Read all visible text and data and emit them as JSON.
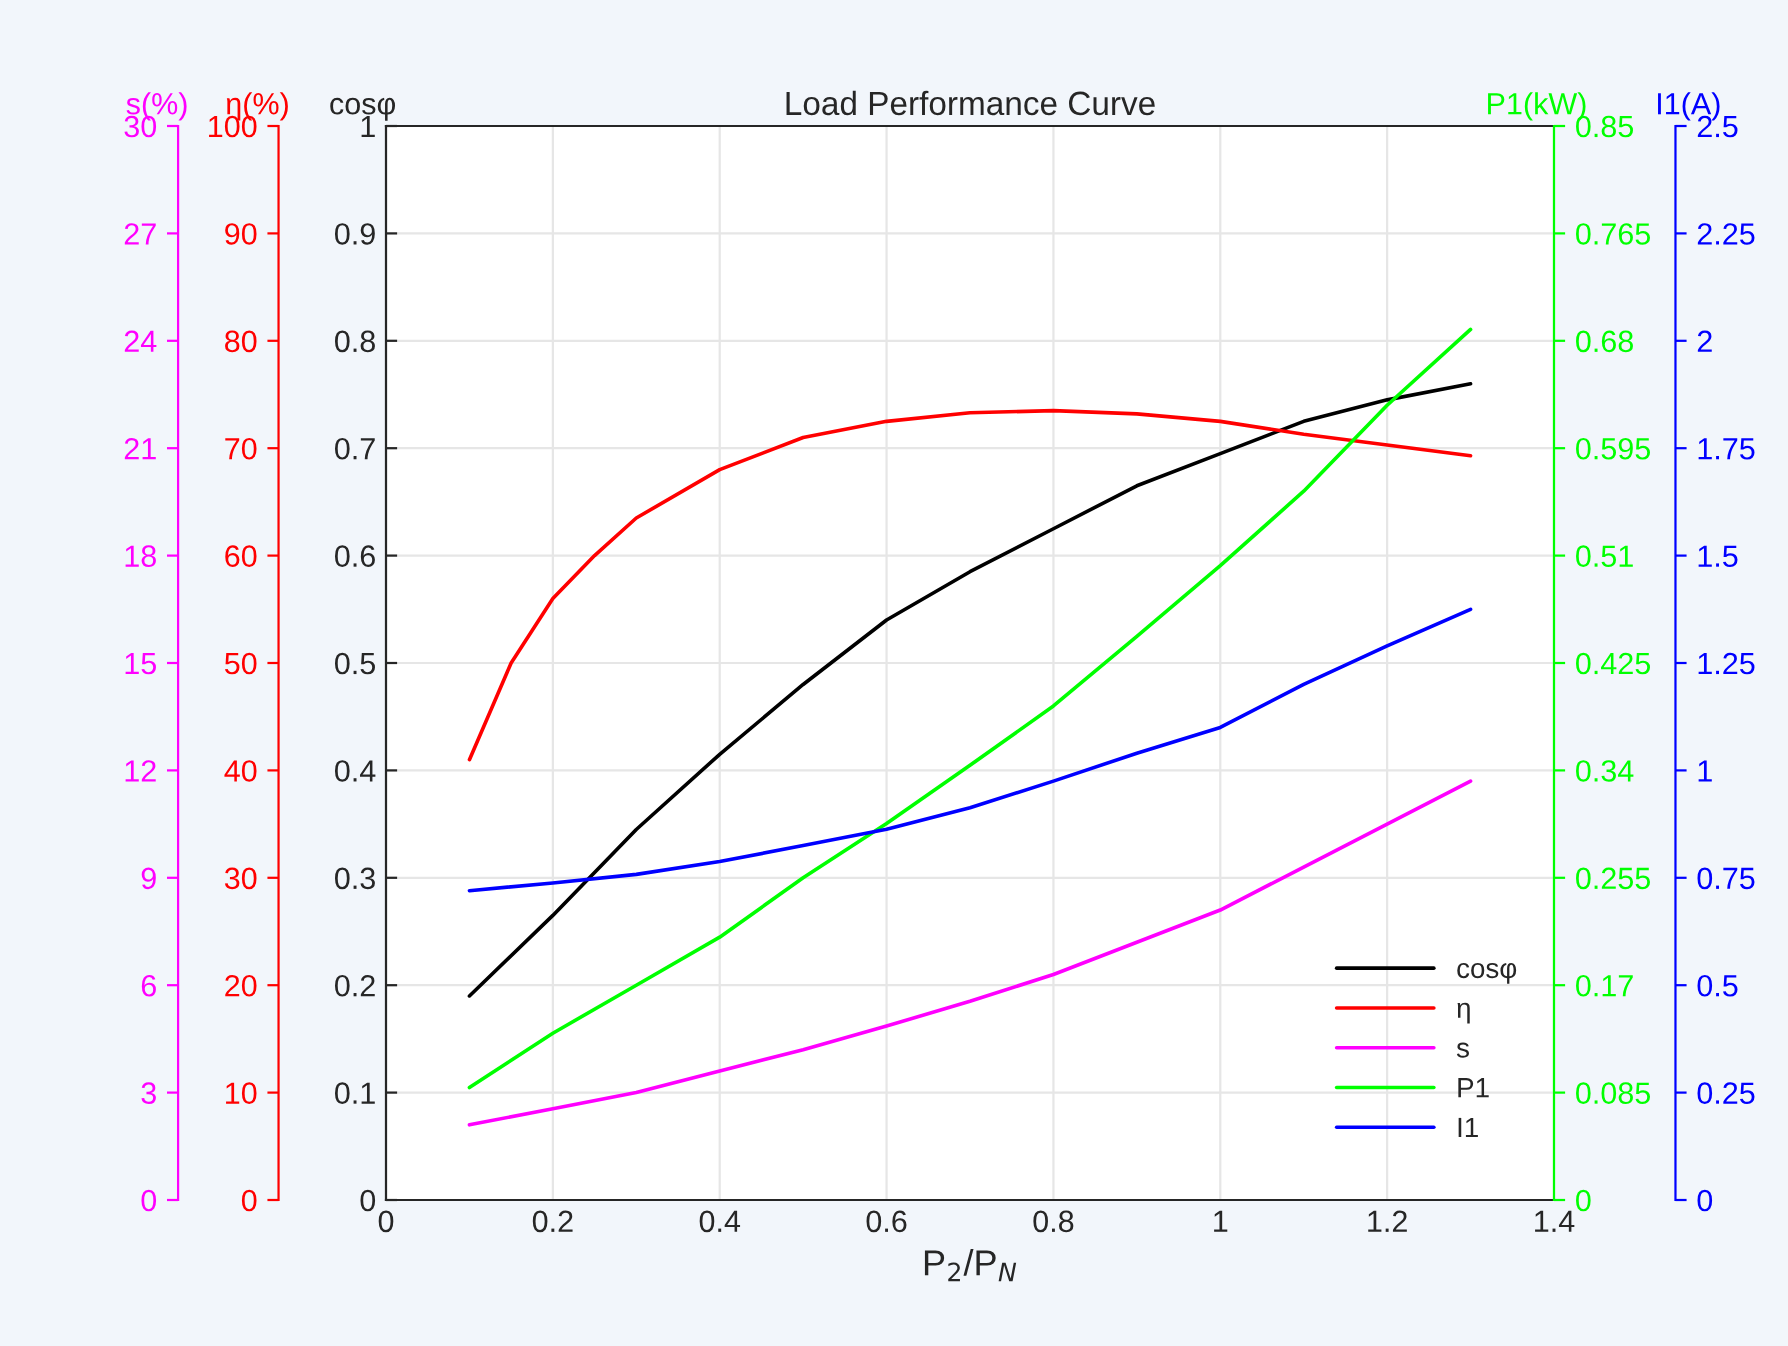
{
  "chart_data": [
    {
      "type": "line",
      "title": "Load Performance Curve",
      "xlabel": "P$_{2}$/P$_{N}$",
      "ylabel": "cosφ",
      "y2label": "η(%)",
      "x": [
        0.1,
        0.2,
        0.3,
        0.4,
        0.5,
        0.6,
        0.7,
        0.8,
        0.9,
        1.0,
        1.1,
        1.2,
        1.3
      ],
      "xlim": [
        0,
        1.4
      ],
      "xticks": [
        0,
        0.2,
        0.4,
        0.6,
        0.8,
        1,
        1.2,
        1.4
      ],
      "ylim": [
        0,
        1
      ],
      "yticks": [
        0,
        0.1,
        0.2,
        0.3,
        0.4,
        0.5,
        0.6,
        0.7,
        0.8,
        0.9,
        1
      ],
      "y2lim": [
        0,
        100
      ],
      "y2ticks": [
        0,
        10,
        20,
        30,
        40,
        50,
        60,
        70,
        80,
        90,
        100
      ],
      "grid": true,
      "legend": "bottom right",
      "line_style": "solid",
      "series": [
        {
          "name": "cosφ",
          "color": "#000000",
          "values": [
            0.19,
            0.265,
            0.345,
            0.415,
            0.48,
            0.54,
            0.585,
            0.625,
            0.665,
            0.695,
            0.725,
            0.745,
            0.76
          ]
        },
        {
          "name": "η",
          "color": "#ff0000",
          "axis": "y2",
          "x": [
            0.1,
            0.15,
            0.2,
            0.25,
            0.3,
            0.4,
            0.5,
            0.6,
            0.7,
            0.8,
            0.9,
            1.0,
            1.1,
            1.2,
            1.3
          ],
          "values": [
            41,
            50,
            56,
            60,
            63.5,
            68,
            71,
            72.5,
            73.3,
            73.5,
            73.2,
            72.5,
            71.3,
            70.3,
            69.3
          ]
        }
      ]
    },
    {
      "type": "line",
      "ylabel": "s(%)",
      "tick_labels": "y",
      "x": [
        0.1,
        0.2,
        0.3,
        0.4,
        0.5,
        0.6,
        0.7,
        0.8,
        0.9,
        1.0,
        1.1,
        1.2,
        1.3
      ],
      "xlim": [
        0,
        1.4
      ],
      "ylim": [
        0,
        30
      ],
      "yticks": [
        0,
        3,
        6,
        9,
        12,
        15,
        18,
        21,
        24,
        27,
        30
      ],
      "legend": "bottom right",
      "line_style": "solid",
      "series": [
        {
          "name": "s",
          "color": "#ff00ff",
          "values": [
            2.1,
            2.55,
            3.0,
            3.6,
            4.2,
            4.86,
            5.55,
            6.3,
            7.2,
            8.1,
            9.3,
            10.5,
            11.7
          ]
        }
      ]
    },
    {
      "type": "line",
      "ylabel": "P1(kW)",
      "y2label": "I1(A)",
      "tick_labels": "y",
      "x": [
        0.1,
        0.2,
        0.3,
        0.4,
        0.5,
        0.6,
        0.7,
        0.8,
        0.9,
        1.0,
        1.1,
        1.2,
        1.3
      ],
      "xlim": [
        0,
        1.4
      ],
      "ylim": [
        0,
        0.85
      ],
      "yticks": [
        0,
        0.085,
        0.17,
        0.255,
        0.34,
        0.425,
        0.51,
        0.595,
        0.68,
        0.765,
        0.85
      ],
      "y2lim": [
        0,
        2.5
      ],
      "y2ticks": [
        0,
        0.25,
        0.5,
        0.75,
        1,
        1.25,
        1.5,
        1.75,
        2,
        2.25,
        2.5
      ],
      "legend": "bottom right",
      "line_style": "solid",
      "series": [
        {
          "name": "P1",
          "color": "#00ff00",
          "values": [
            0.089,
            0.132,
            0.17,
            0.208,
            0.255,
            0.298,
            0.344,
            0.391,
            0.446,
            0.502,
            0.561,
            0.629,
            0.689
          ]
        },
        {
          "name": "I1",
          "color": "#0000ff",
          "axis": "y2",
          "values": [
            0.72,
            0.738,
            0.758,
            0.788,
            0.825,
            0.863,
            0.913,
            0.975,
            1.04,
            1.1,
            1.2,
            1.29,
            1.375
          ]
        }
      ]
    }
  ]
}
